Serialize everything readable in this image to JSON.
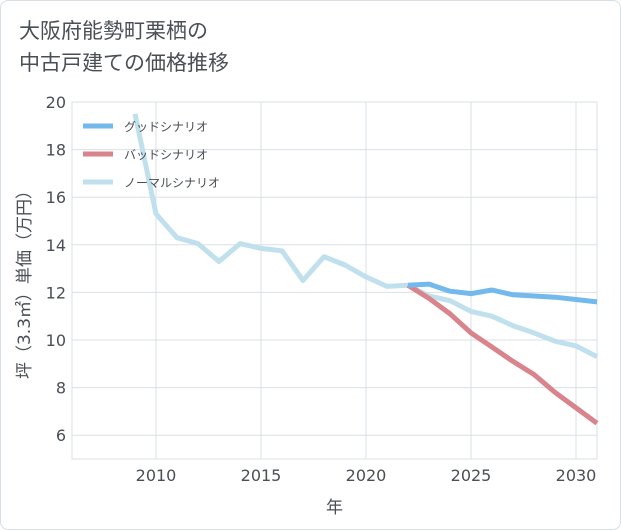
{
  "title_line1": "大阪府能勢町栗栖の",
  "title_line2": "中古戸建ての価格推移",
  "colors": {
    "good": "#74b9ec",
    "bad": "#d9848c",
    "normal": "#bfe0ec",
    "grid": "#d9e0e7",
    "text": "#4a4f55"
  },
  "chart_data": {
    "type": "line",
    "xlabel": "年",
    "ylabel": "坪（3.3㎡）単価（万円）",
    "xlim": [
      2006,
      2031
    ],
    "ylim": [
      5,
      20
    ],
    "x_ticks": [
      2010,
      2015,
      2020,
      2025,
      2030
    ],
    "y_ticks": [
      6,
      8,
      10,
      12,
      14,
      16,
      18,
      20
    ],
    "grid": true,
    "legend_position": "top-left",
    "series": [
      {
        "name": "グッドシナリオ",
        "color_key": "good",
        "x": [
          2022,
          2023,
          2024,
          2025,
          2026,
          2027,
          2028,
          2029,
          2030,
          2031
        ],
        "y": [
          12.3,
          12.35,
          12.05,
          11.95,
          12.1,
          11.9,
          11.85,
          11.8,
          11.7,
          11.6
        ]
      },
      {
        "name": "バッドシナリオ",
        "color_key": "bad",
        "x": [
          2022,
          2023,
          2024,
          2025,
          2026,
          2027,
          2028,
          2029,
          2030,
          2031
        ],
        "y": [
          12.3,
          11.75,
          11.1,
          10.3,
          9.7,
          9.1,
          8.55,
          7.8,
          7.15,
          6.5
        ]
      },
      {
        "name": "ノーマルシナリオ",
        "color_key": "normal",
        "x": [
          2009,
          2010,
          2011,
          2012,
          2013,
          2014,
          2015,
          2016,
          2017,
          2018,
          2019,
          2020,
          2021,
          2022,
          2023,
          2024,
          2025,
          2026,
          2027,
          2028,
          2029,
          2030,
          2031
        ],
        "y": [
          19.5,
          15.3,
          14.3,
          14.05,
          13.3,
          14.05,
          13.85,
          13.75,
          12.5,
          13.5,
          13.15,
          12.65,
          12.25,
          12.3,
          11.85,
          11.65,
          11.2,
          11.0,
          10.6,
          10.3,
          9.95,
          9.75,
          9.3
        ]
      }
    ]
  }
}
